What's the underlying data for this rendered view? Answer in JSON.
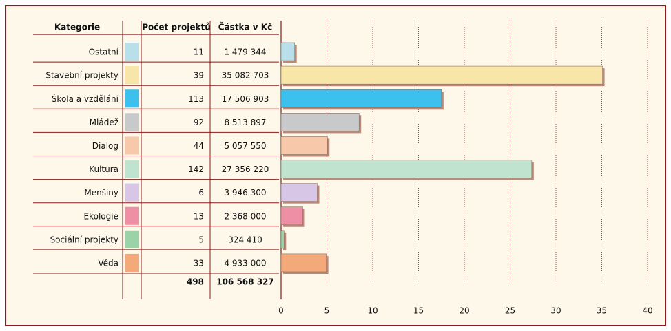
{
  "chart_data": {
    "type": "bar",
    "orientation": "horizontal",
    "columns": [
      "Kategorie",
      "Počet projektů",
      "Částka v Kč"
    ],
    "categories": [
      "Ostatní",
      "Stavební projekty",
      "Škola a vzdělání",
      "Mládež",
      "Dialog",
      "Kultura",
      "Menšiny",
      "Ekologie",
      "Sociální projekty",
      "Věda"
    ],
    "colors": [
      "#b9e0ea",
      "#f8e6a8",
      "#3cc0ee",
      "#c8c9cb",
      "#f7c9aa",
      "#bfe3cf",
      "#d8c6e6",
      "#ef8fa6",
      "#9bd3a8",
      "#f3a97a"
    ],
    "projects": [
      11,
      39,
      113,
      92,
      44,
      142,
      6,
      13,
      5,
      33
    ],
    "values": [
      1.479344,
      35.082703,
      17.506903,
      8.513897,
      5.05755,
      27.35622,
      3.9463,
      2.368,
      0.32441,
      4.933
    ],
    "value_labels": [
      "1 479 344",
      "35 082 703",
      "17 506 903",
      "8 513 897",
      "5 057 550",
      "27 356 220",
      "3 946 300",
      "2 368 000",
      "324 410",
      "4 933 000"
    ],
    "total_projects": 498,
    "total_amount": "106 568 327",
    "xlim": [
      0,
      40
    ],
    "xticks": [
      0,
      5,
      10,
      15,
      20,
      25,
      30,
      35,
      40
    ],
    "grid": true
  }
}
